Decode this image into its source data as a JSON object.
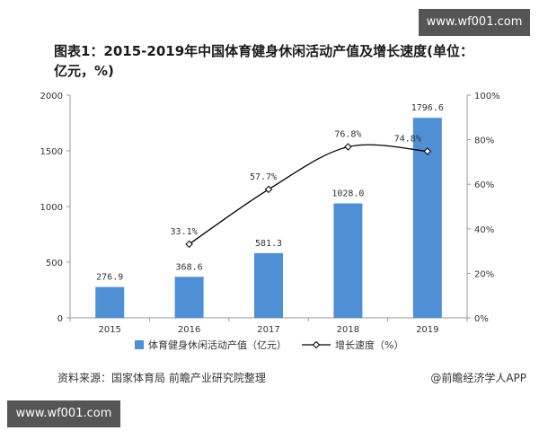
{
  "watermark": {
    "top_right": "www.wf001.com",
    "bottom_left": "www.wf001.com"
  },
  "title": "图表1：2015-2019年中国体育健身休闲活动产值及增长速度(单位：亿元，%)",
  "footer": {
    "source": "资料来源：国家体育局 前瞻产业研究院整理",
    "credit": "@前瞻经济学人APP"
  },
  "colors": {
    "bar": "#4f8fd6",
    "line": "#000000",
    "marker_fill": "#ffffff"
  },
  "chart_data": {
    "type": "bar",
    "categories": [
      "2015",
      "2016",
      "2017",
      "2018",
      "2019"
    ],
    "series": [
      {
        "name": "体育健身休闲活动产值（亿元）",
        "kind": "bar",
        "axis": "left",
        "values": [
          276.9,
          368.6,
          581.3,
          1028.0,
          1796.6
        ],
        "labels": [
          "276.9",
          "368.6",
          "581.3",
          "1028.0",
          "1796.6"
        ]
      },
      {
        "name": "增长速度（%）",
        "kind": "line",
        "axis": "right",
        "values": [
          null,
          33.1,
          57.7,
          76.8,
          74.8
        ],
        "labels": [
          "",
          "33.1%",
          "57.7%",
          "76.8%",
          "74.8%"
        ]
      }
    ],
    "ylim_left": [
      0,
      2000
    ],
    "yticks_left": [
      0,
      500,
      1000,
      1500,
      2000
    ],
    "ylim_right": [
      0,
      100
    ],
    "yticks_right": [
      "0%",
      "20%",
      "40%",
      "60%",
      "80%",
      "100%"
    ],
    "legend": "bottom",
    "grid": false
  }
}
